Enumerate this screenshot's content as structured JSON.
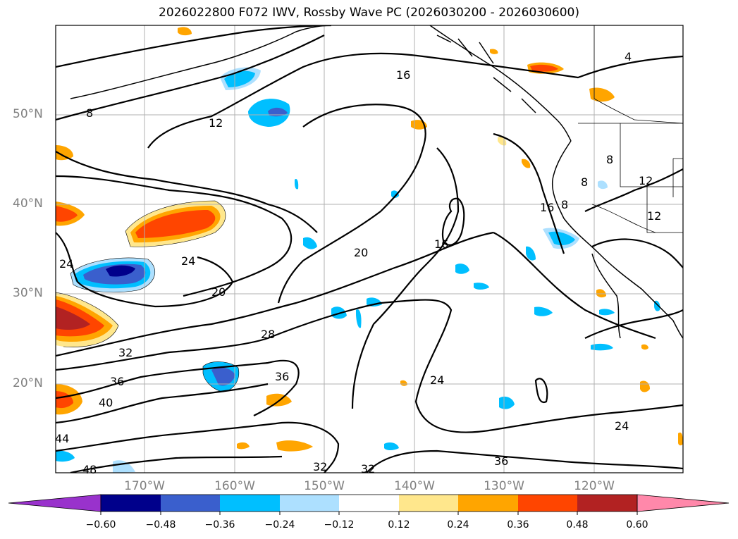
{
  "title": "2026022800 F072 IWV, Rossby Wave PC (2026030200 - 2026030600)",
  "map": {
    "lat_labels": [
      "50°N",
      "40°N",
      "30°N",
      "20°N"
    ],
    "lon_labels": [
      "170°W",
      "160°W",
      "150°W",
      "140°W",
      "130°W",
      "120°W"
    ],
    "contour_labels": [
      "4",
      "8",
      "12",
      "16",
      "20",
      "24",
      "28",
      "32",
      "36",
      "40",
      "44",
      "48",
      "20",
      "24",
      "24",
      "36",
      "24",
      "32",
      "36",
      "32",
      "16",
      "16",
      "8",
      "12",
      "12",
      "8",
      "8"
    ]
  },
  "colorbar": {
    "colors": [
      "#9932CC",
      "#00008B",
      "#3A5FCD",
      "#00BFFF",
      "#ADE0FF",
      "#FFFFFF",
      "#FFE78C",
      "#FFA500",
      "#FF4500",
      "#B22222",
      "#FF88AA"
    ],
    "ticks": [
      "−0.60",
      "−0.48",
      "−0.36",
      "−0.24",
      "−0.12",
      "0.12",
      "0.24",
      "0.36",
      "0.48",
      "0.60"
    ]
  }
}
